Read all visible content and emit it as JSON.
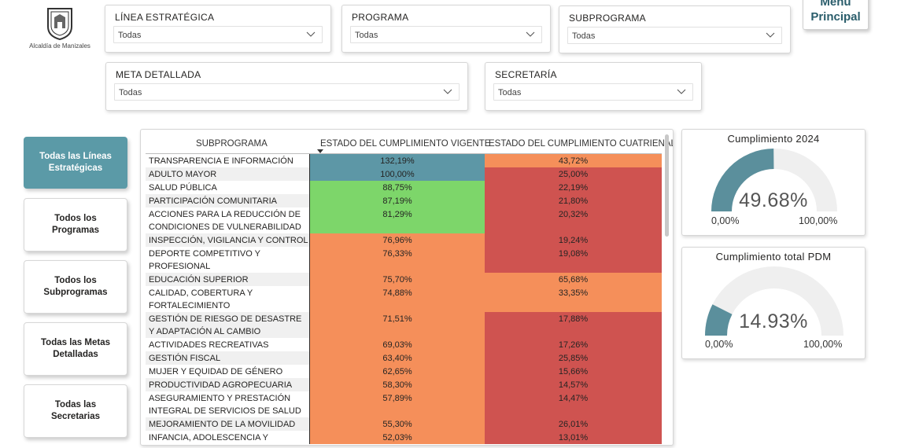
{
  "logo": {
    "caption": "Alcaldía de Manizales"
  },
  "menu_button": {
    "line1": "Menú",
    "line2": "Principal"
  },
  "slicers": {
    "linea": {
      "title": "LÍNEA ESTRATÉGICA",
      "value": "Todas"
    },
    "programa": {
      "title": "PROGRAMA",
      "value": "Todas"
    },
    "subprograma": {
      "title": "SUBPROGRAMA",
      "value": "Todas"
    },
    "meta": {
      "title": "META DETALLADA",
      "value": "Todas"
    },
    "secretaria": {
      "title": "SECRETARÍA",
      "value": "Todas"
    }
  },
  "nav": {
    "lineas": "Todas las Líneas Estratégicas",
    "programas": "Todos los Programas",
    "subprogramas": "Todos los Subprogramas",
    "metas": "Todas las Metas Detalladas",
    "secretarias": "Todas las Secretarias"
  },
  "table": {
    "headers": [
      "SUBPROGRAMA",
      "ESTADO DEL CUMPLIMIENTO VIGENTE",
      "ESTADO DEL CUMPLIMIENTO CUATRIENAL"
    ],
    "rows": [
      {
        "name": "TRANSPARENCIA E INFORMACIÓN",
        "vigente": "132,19%",
        "cuatrienal": "43,72%"
      },
      {
        "name": "ADULTO MAYOR",
        "vigente": "100,00%",
        "cuatrienal": "25,00%"
      },
      {
        "name": "SALUD PÚBLICA",
        "vigente": "88,75%",
        "cuatrienal": "22,19%"
      },
      {
        "name": "PARTICIPACIÓN COMUNITARIA",
        "vigente": "87,19%",
        "cuatrienal": "21,80%"
      },
      {
        "name": "ACCIONES PARA LA REDUCCIÓN DE CONDICIONES DE VULNERABILIDAD",
        "vigente": "81,29%",
        "cuatrienal": "20,32%"
      },
      {
        "name": "INSPECCIÓN, VIGILANCIA Y CONTROL",
        "vigente": "76,96%",
        "cuatrienal": "19,24%"
      },
      {
        "name": "DEPORTE COMPETITIVO Y PROFESIONAL",
        "vigente": "76,33%",
        "cuatrienal": "19,08%"
      },
      {
        "name": "EDUCACIÓN SUPERIOR",
        "vigente": "75,70%",
        "cuatrienal": "65,68%"
      },
      {
        "name": "CALIDAD, COBERTURA Y FORTALECIMIENTO",
        "vigente": "74,88%",
        "cuatrienal": "33,35%"
      },
      {
        "name": "GESTIÓN DE RIESGO DE DESASTRE Y ADAPTACIÓN AL CAMBIO CLIMÁTICO",
        "vigente": "71,51%",
        "cuatrienal": "17,88%"
      },
      {
        "name": "ACTIVIDADES RECREATIVAS",
        "vigente": "69,03%",
        "cuatrienal": "17,26%"
      },
      {
        "name": "GESTIÓN FISCAL",
        "vigente": "63,40%",
        "cuatrienal": "25,85%"
      },
      {
        "name": "MUJER Y EQUIDAD DE GÉNERO",
        "vigente": "62,65%",
        "cuatrienal": "15,66%"
      },
      {
        "name": "PRODUCTIVIDAD AGROPECUARIA",
        "vigente": "58,30%",
        "cuatrienal": "14,57%"
      },
      {
        "name": "ASEGURAMIENTO Y PRESTACIÓN INTEGRAL DE SERVICIOS DE SALUD",
        "vigente": "57,89%",
        "cuatrienal": "14,47%"
      },
      {
        "name": "MEJORAMIENTO DE LA MOVILIDAD",
        "vigente": "55,30%",
        "cuatrienal": "26,01%"
      },
      {
        "name": "INFANCIA, ADOLESCENCIA Y",
        "vigente": "52,03%",
        "cuatrienal": "13,01%"
      }
    ]
  },
  "gauges": {
    "g2024": {
      "title": "Cumplimiento 2024",
      "value_text": "49.68%",
      "fraction": 0.4968,
      "min": "0,00%",
      "max": "100,00%"
    },
    "pdm": {
      "title": "Cumplimiento total PDM",
      "value_text": "14.93%",
      "fraction": 0.1493,
      "min": "0,00%",
      "max": "100,00%"
    }
  },
  "colors": {
    "blue": "#5d97a6",
    "green": "#7dd66a",
    "orange": "#f58f5a",
    "red": "#cf5350",
    "gauge_fill": "#5b8f9c",
    "gauge_track": "#efefef"
  }
}
